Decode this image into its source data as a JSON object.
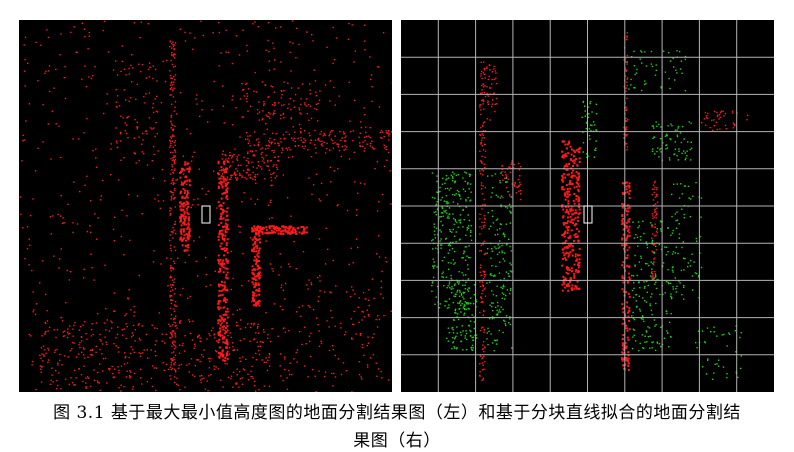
{
  "figure": {
    "caption_line1": "图 3.1  基于最大最小值高度图的地面分割结果图（左）和基于分块直线拟合的地面分割结",
    "caption_line2": "果图（右）"
  },
  "colors": {
    "background": "#000000",
    "non_ground_points": "#ff1a1a",
    "ground_fit_points": "#19d419",
    "grid_lines": "#b4b4b4",
    "vehicle_marker": "#ffffff"
  },
  "left_image": {
    "description_icon": "lidar-pointcloud-heightmap-segmentation"
  },
  "right_image": {
    "description_icon": "lidar-pointcloud-blockwise-line-fit-segmentation",
    "grid": {
      "columns": 10,
      "rows": 10
    }
  }
}
